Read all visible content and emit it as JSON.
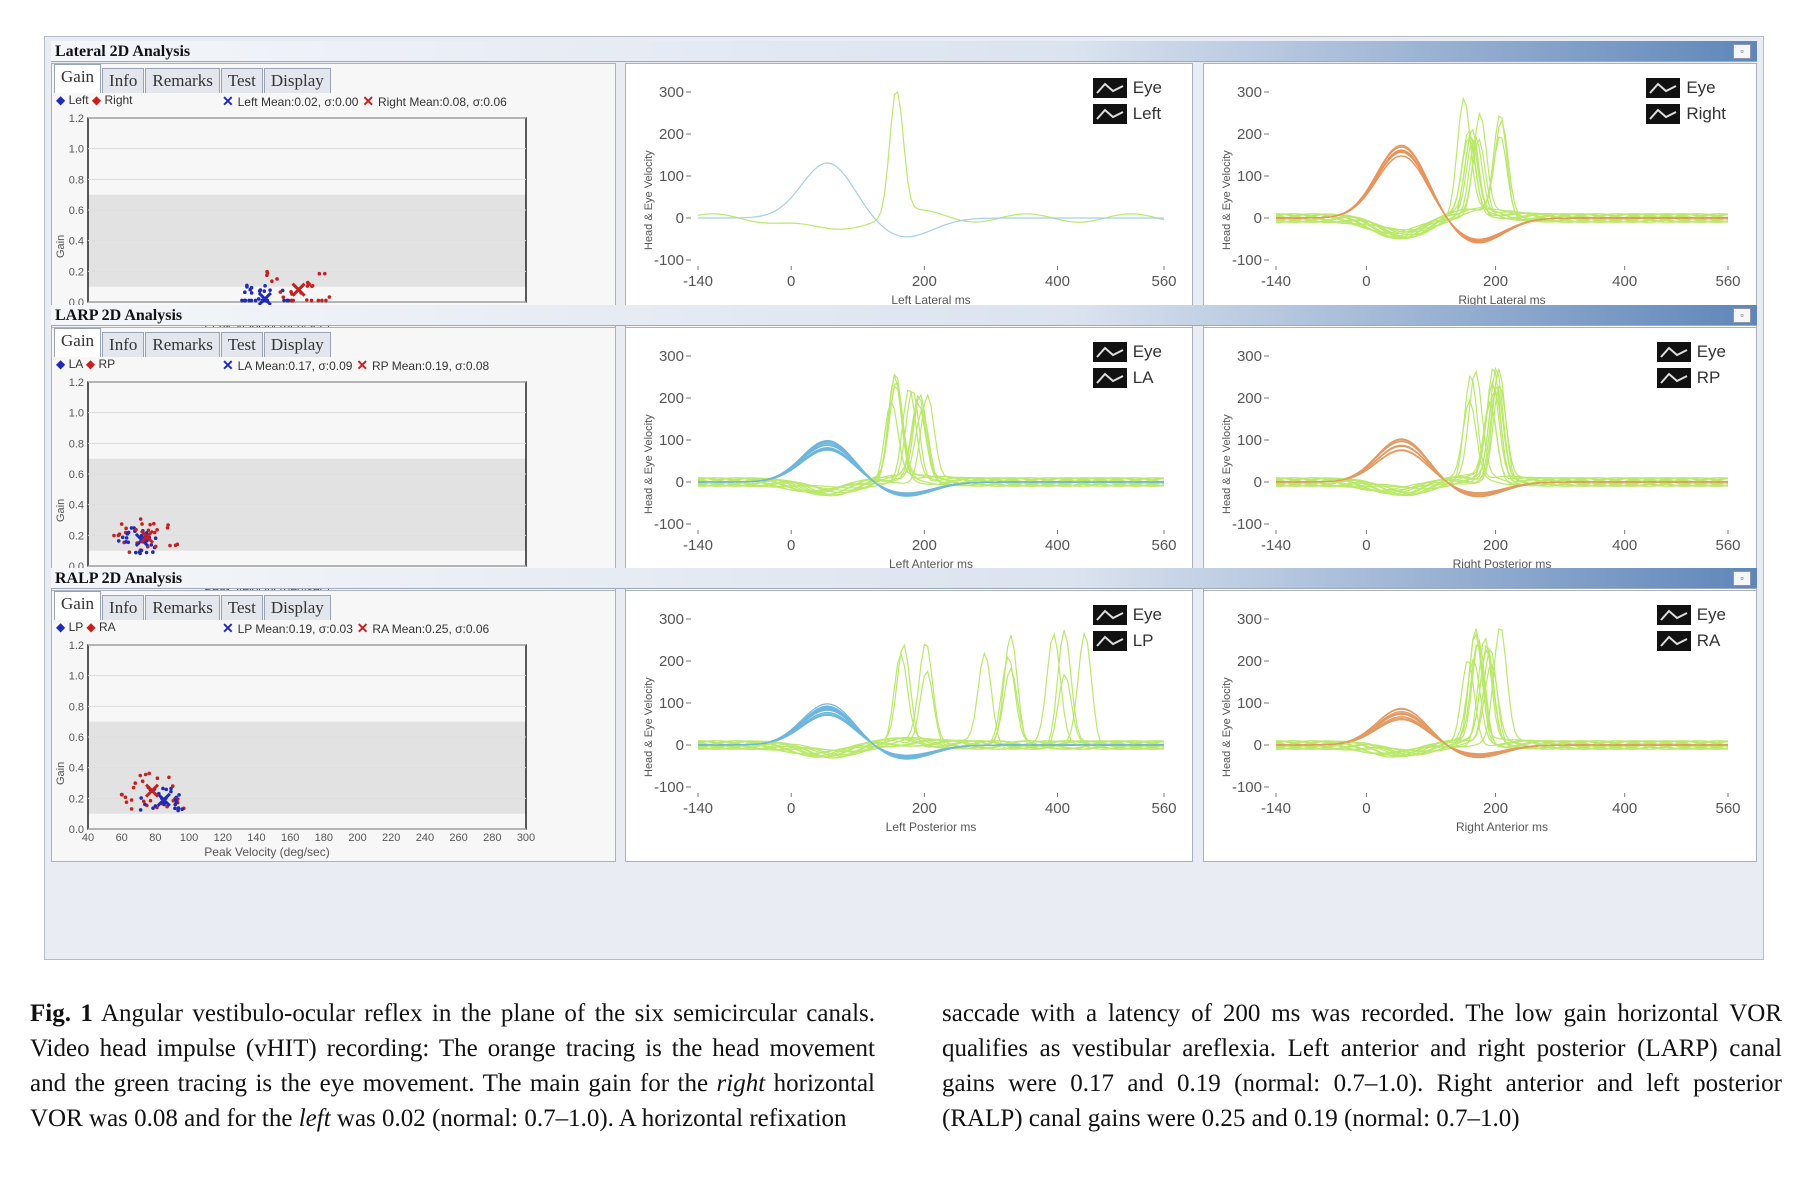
{
  "figure": {
    "sections": [
      {
        "title": "Lateral 2D Analysis",
        "tabs": [
          "Gain",
          "Info",
          "Remarks",
          "Test",
          "Display"
        ],
        "legend": {
          "a": "Left",
          "b": "Right"
        },
        "means": {
          "a": "Left Mean:0.02, σ:0.00",
          "b": "Right Mean:0.08, σ:0.06"
        },
        "waves": [
          {
            "legend": [
              "Eye",
              "Left"
            ],
            "xlabel": "Left Lateral ms",
            "head_color": "#a6cfe3"
          },
          {
            "legend": [
              "Eye",
              "Right"
            ],
            "xlabel": "Right Lateral ms",
            "head_color": "#e9935a"
          }
        ]
      },
      {
        "title": "LARP 2D Analysis",
        "tabs": [
          "Gain",
          "Info",
          "Remarks",
          "Test",
          "Display"
        ],
        "legend": {
          "a": "LA",
          "b": "RP"
        },
        "means": {
          "a": "LA Mean:0.17, σ:0.09",
          "b": "RP Mean:0.19, σ:0.08"
        },
        "waves": [
          {
            "legend": [
              "Eye",
              "LA"
            ],
            "xlabel": "Left Anterior ms",
            "head_color": "#6fb6dc"
          },
          {
            "legend": [
              "Eye",
              "RP"
            ],
            "xlabel": "Right Posterior ms",
            "head_color": "#e39a62"
          }
        ]
      },
      {
        "title": "RALP 2D Analysis",
        "tabs": [
          "Gain",
          "Info",
          "Remarks",
          "Test",
          "Display"
        ],
        "legend": {
          "a": "LP",
          "b": "RA"
        },
        "means": {
          "a": "LP Mean:0.19, σ:0.03",
          "b": "RA Mean:0.25, σ:0.06"
        },
        "waves": [
          {
            "legend": [
              "Eye",
              "LP"
            ],
            "xlabel": "Left Posterior ms",
            "head_color": "#6fb6dc"
          },
          {
            "legend": [
              "Eye",
              "RA"
            ],
            "xlabel": "Right Anterior ms",
            "head_color": "#e39a62"
          }
        ]
      }
    ],
    "gain_axis": {
      "ylabel": "Gain",
      "xlabel": "Peak Velocity (deg/sec)",
      "yticks": [
        "0.0",
        "0.2",
        "0.4",
        "0.6",
        "0.8",
        "1.0",
        "1.2"
      ],
      "xticks": [
        "40",
        "60",
        "80",
        "100",
        "120",
        "140",
        "160",
        "180",
        "200",
        "220",
        "240",
        "260",
        "280",
        "300"
      ]
    },
    "wave_axis": {
      "ylabel": "Head & Eye Velocity",
      "yticks": [
        "300",
        "200",
        "100",
        "0",
        "-100"
      ],
      "xticks": [
        "-140",
        "0",
        "200",
        "400",
        "560"
      ]
    },
    "colors": {
      "eye": "#b9e86a",
      "left_marker": "#1f2ab8",
      "right_marker": "#c81e1e"
    }
  },
  "caption": {
    "fig_label": "Fig. 1",
    "col1_a": " Angular vestibulo-ocular reflex in the plane of the six semicircular canals. Video head impulse (vHIT) recording: The orange tracing is the head movement and the green tracing is the eye movement. The main gain for the ",
    "col1_right": "right",
    "col1_b": " horizontal VOR was 0.08 and for the ",
    "col1_left": "left",
    "col1_c": " was 0.02 (normal: 0.7–1.0). A horizontal refixation",
    "col2": "saccade with a latency of 200 ms was recorded. The low gain horizontal VOR qualifies as vestibular areflexia. Left anterior and right posterior (LARP) canal gains were 0.17 and 0.19 (normal: 0.7–1.0). Right anterior and left posterior (RALP) canal gains were 0.25 and 0.19 (normal: 0.7–1.0)"
  }
}
